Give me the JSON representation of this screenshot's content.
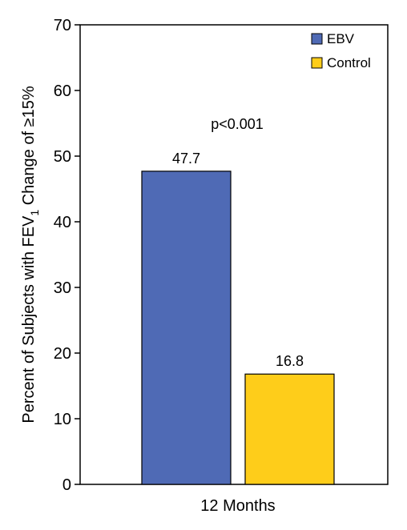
{
  "chart_data": {
    "type": "bar",
    "categories": [
      "12 Months"
    ],
    "series": [
      {
        "name": "EBV",
        "values": [
          47.7
        ],
        "color": "#4f6ab5"
      },
      {
        "name": "Control",
        "values": [
          16.8
        ],
        "color": "#fecd1a"
      }
    ],
    "data_labels": [
      "47.7",
      "16.8"
    ],
    "annotation": "p<0.001",
    "ylabel_main": "Percent of Subjects with FEV",
    "ylabel_sub": "1",
    "ylabel_tail": " Change of ≥15%",
    "ylim": [
      0,
      70
    ],
    "yticks": [
      0,
      10,
      20,
      30,
      40,
      50,
      60,
      70
    ],
    "grid": false,
    "legend_position": "top-right"
  }
}
